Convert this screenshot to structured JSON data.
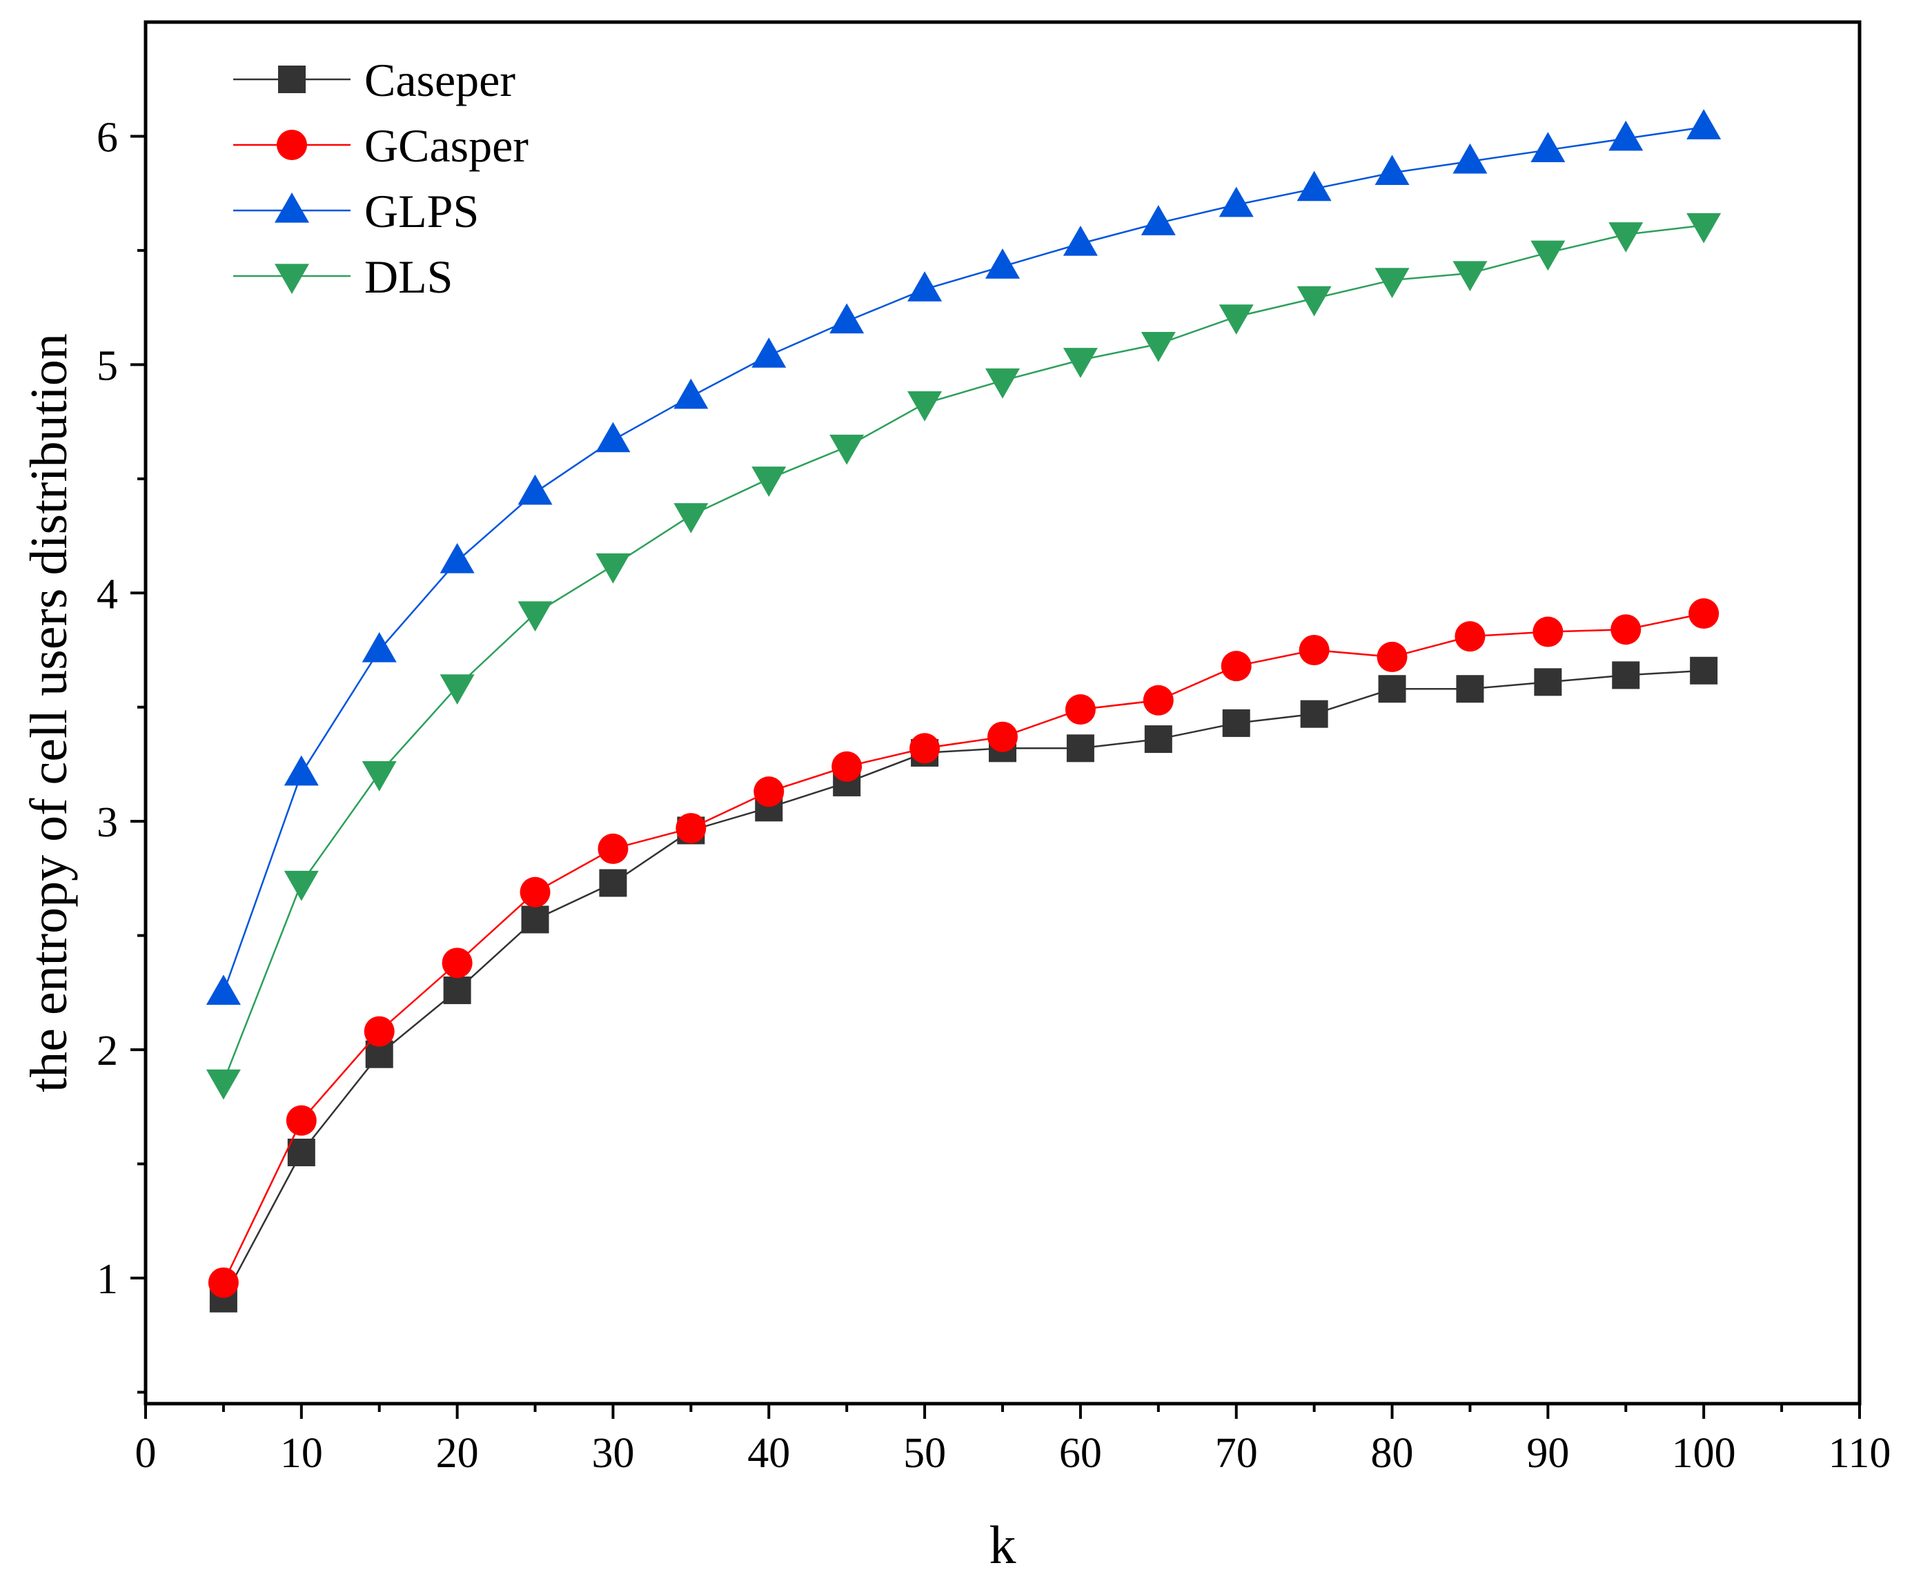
{
  "chart_data": {
    "type": "line",
    "title": "",
    "xlabel": "k",
    "ylabel": "the entropy of cell users distribution",
    "xlim": [
      0,
      110
    ],
    "ylim": [
      0.45,
      6.5
    ],
    "x_ticks": [
      0,
      10,
      20,
      30,
      40,
      50,
      60,
      70,
      80,
      90,
      100,
      110
    ],
    "y_ticks": [
      1,
      2,
      3,
      4,
      5,
      6
    ],
    "x_minor_ticks": [
      5,
      15,
      25,
      35,
      45,
      55,
      65,
      75,
      85,
      95,
      105
    ],
    "y_minor_ticks": [
      0.5,
      1.5,
      2.5,
      3.5,
      4.5,
      5.5
    ],
    "legend_position": "top-left",
    "x": [
      5,
      10,
      15,
      20,
      25,
      30,
      35,
      40,
      45,
      50,
      55,
      60,
      65,
      70,
      75,
      80,
      85,
      90,
      95,
      100
    ],
    "series": [
      {
        "name": "Caseper",
        "color": "#333333",
        "marker": "square",
        "values": [
          0.91,
          1.55,
          1.98,
          2.26,
          2.57,
          2.73,
          2.96,
          3.06,
          3.17,
          3.3,
          3.32,
          3.32,
          3.36,
          3.43,
          3.47,
          3.58,
          3.58,
          3.61,
          3.64,
          3.66
        ]
      },
      {
        "name": "GCasper",
        "color": "#ff0000",
        "marker": "circle",
        "values": [
          0.98,
          1.69,
          2.08,
          2.38,
          2.69,
          2.88,
          2.97,
          3.13,
          3.24,
          3.32,
          3.37,
          3.49,
          3.53,
          3.68,
          3.75,
          3.72,
          3.81,
          3.83,
          3.84,
          3.91
        ]
      },
      {
        "name": "GLPS",
        "color": "#0055dd",
        "marker": "triangle-up",
        "values": [
          2.25,
          3.21,
          3.75,
          4.14,
          4.44,
          4.67,
          4.86,
          5.04,
          5.19,
          5.33,
          5.43,
          5.53,
          5.62,
          5.7,
          5.77,
          5.84,
          5.89,
          5.94,
          5.99,
          6.04
        ]
      },
      {
        "name": "DLS",
        "color": "#2ca05a",
        "marker": "triangle-down",
        "values": [
          1.86,
          2.73,
          3.21,
          3.59,
          3.91,
          4.12,
          4.34,
          4.5,
          4.64,
          4.83,
          4.93,
          5.02,
          5.09,
          5.21,
          5.29,
          5.37,
          5.4,
          5.49,
          5.57,
          5.61
        ]
      }
    ]
  }
}
